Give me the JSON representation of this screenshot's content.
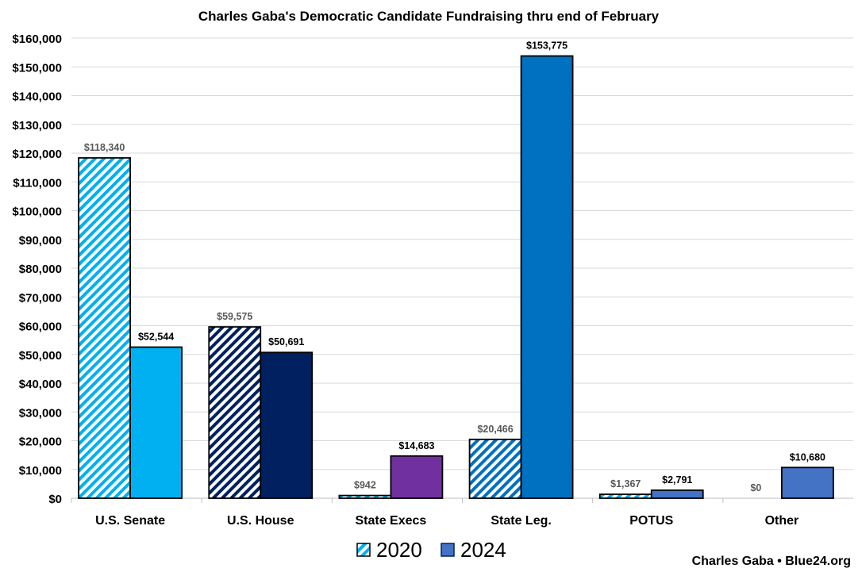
{
  "chart_data": {
    "type": "bar",
    "title": "Charles Gaba's Democratic Candidate Fundraising thru end of February",
    "categories": [
      "U.S. Senate",
      "U.S. House",
      "State Execs",
      "State Leg.",
      "POTUS",
      "Other"
    ],
    "series": [
      {
        "name": "2020",
        "values": [
          118340,
          59575,
          942,
          20466,
          1367,
          0
        ],
        "labels": [
          "$118,340",
          "$59,575",
          "$942",
          "$20,466",
          "$1,367",
          "$0"
        ],
        "colors": [
          "#00B0F0",
          "#002060",
          "#00B0F0",
          "#0070C0",
          "#00B0F0",
          "#00B0F0"
        ],
        "pattern": "hatched"
      },
      {
        "name": "2024",
        "values": [
          52544,
          50691,
          14683,
          153775,
          2791,
          10680
        ],
        "labels": [
          "$52,544",
          "$50,691",
          "$14,683",
          "$153,775",
          "$2,791",
          "$10,680"
        ],
        "colors": [
          "#00B0F0",
          "#002060",
          "#7030A0",
          "#0070C0",
          "#4472C4",
          "#4472C4"
        ],
        "pattern": "solid"
      }
    ],
    "ylim": [
      0,
      160000
    ],
    "yticks": [
      "$0",
      "$10,000",
      "$20,000",
      "$30,000",
      "$40,000",
      "$50,000",
      "$60,000",
      "$70,000",
      "$80,000",
      "$90,000",
      "$100,000",
      "$110,000",
      "$120,000",
      "$130,000",
      "$140,000",
      "$150,000",
      "$160,000"
    ],
    "grid": true,
    "legend": "bottom",
    "legend_colors": {
      "2020": "#00B0F0",
      "2024": "#4472C4"
    },
    "credit": "Charles Gaba • Blue24.org"
  }
}
